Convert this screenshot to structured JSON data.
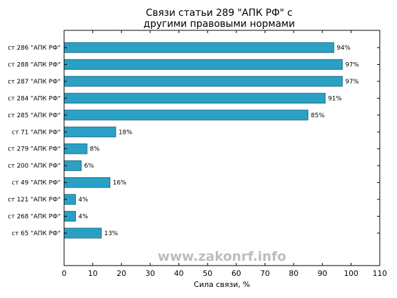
{
  "chart_data": {
    "type": "bar",
    "orientation": "horizontal",
    "title_lines": [
      "Связи статьи 289 \"АПК РФ\" с",
      "другими правовыми нормами"
    ],
    "xlabel": "Сила связи, %",
    "ylabel": "",
    "categories": [
      "ст 286 \"АПК РФ\"",
      "ст 288 \"АПК РФ\"",
      "ст 287 \"АПК РФ\"",
      "ст 284 \"АПК РФ\"",
      "ст 285 \"АПК РФ\"",
      "ст 71 \"АПК РФ\"",
      "ст 279 \"АПК РФ\"",
      "ст 200 \"АПК РФ\"",
      "ст 49 \"АПК РФ\"",
      "ст 121 \"АПК РФ\"",
      "ст 268 \"АПК РФ\"",
      "ст 65 \"АПК РФ\""
    ],
    "values": [
      94,
      97,
      97,
      91,
      85,
      18,
      8,
      6,
      16,
      4,
      4,
      13
    ],
    "value_labels": [
      "94%",
      "97%",
      "97%",
      "91%",
      "85%",
      "18%",
      "8%",
      "6%",
      "16%",
      "4%",
      "4%",
      "13%"
    ],
    "xlim": [
      0,
      110
    ],
    "xticks": [
      0,
      10,
      20,
      30,
      40,
      50,
      60,
      70,
      80,
      90,
      100,
      110
    ],
    "bar_color": "#2aa0c4",
    "bar_edge_color": "#1b5e74",
    "grid": false,
    "watermark": "www.zakonrf.info"
  }
}
